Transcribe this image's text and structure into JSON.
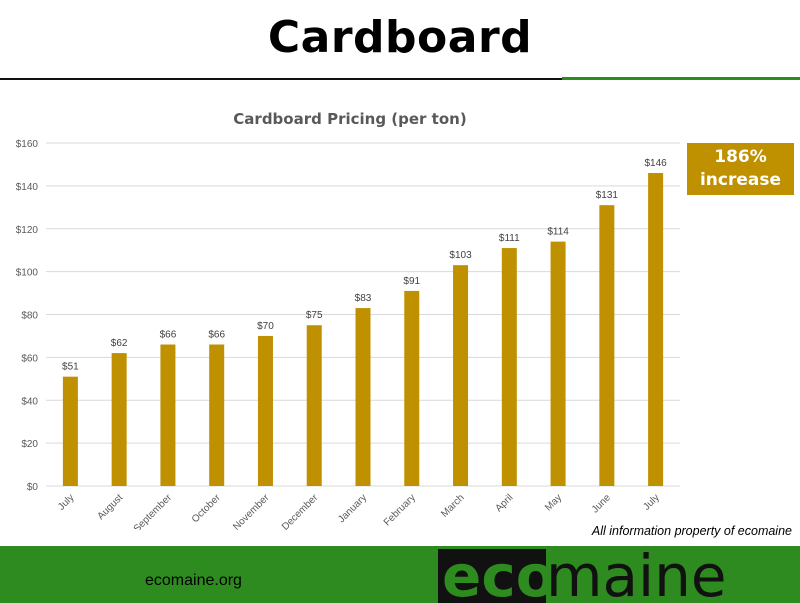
{
  "page": {
    "title": "Cardboard",
    "callout": {
      "line1": "186%",
      "line2": "increase"
    },
    "credit": "All information property of ecomaine",
    "site": "ecomaine.org",
    "logo": {
      "part1": "eco",
      "part2": "maine"
    },
    "colors": {
      "bar": "#bf9000",
      "green": "#2e8b1f",
      "grid": "#d9d9d9",
      "text": "#595959"
    }
  },
  "chart_data": {
    "type": "bar",
    "title": "Cardboard Pricing (per ton)",
    "categories": [
      "July",
      "August",
      "September",
      "October",
      "November",
      "December",
      "January",
      "February",
      "March",
      "April",
      "May",
      "June",
      "July"
    ],
    "values": [
      51,
      62,
      66,
      66,
      70,
      75,
      83,
      91,
      103,
      111,
      114,
      131,
      146
    ],
    "value_labels": [
      "$51",
      "$62",
      "$66",
      "$66",
      "$70",
      "$75",
      "$83",
      "$91",
      "$103",
      "$111",
      "$114",
      "$131",
      "$146"
    ],
    "yticks": [
      0,
      20,
      40,
      60,
      80,
      100,
      120,
      140,
      160
    ],
    "ytick_labels": [
      "$0",
      "$20",
      "$40",
      "$60",
      "$80",
      "$100",
      "$120",
      "$140",
      "$160"
    ],
    "ylim": [
      0,
      160
    ],
    "grid": true,
    "legend": "none"
  }
}
